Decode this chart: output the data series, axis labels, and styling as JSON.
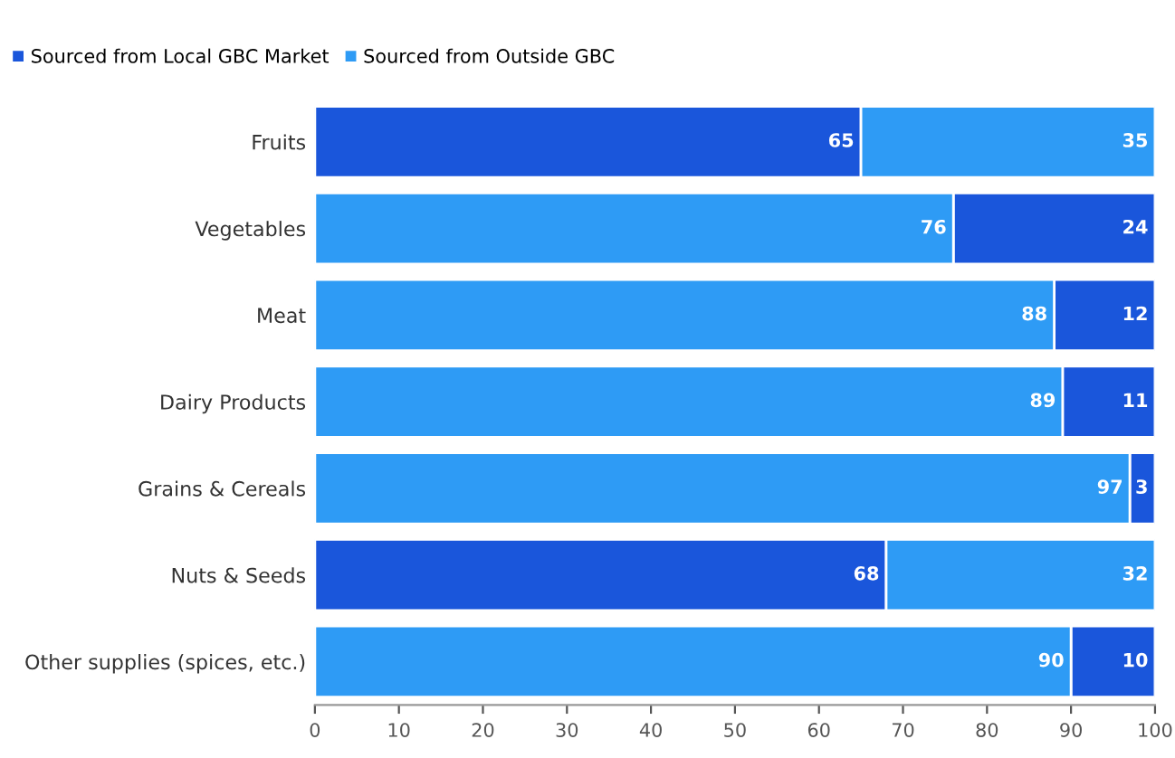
{
  "chart_data": {
    "type": "bar",
    "orientation": "horizontal",
    "categories": [
      "Fruits",
      "Vegetables",
      "Meat",
      "Dairy Products",
      "Grains & Cereals",
      "Nuts & Seeds",
      "Other supplies (spices, etc.)"
    ],
    "series": [
      {
        "name": "Sourced from Local GBC Market",
        "color": "#1a56db",
        "values": [
          65,
          24,
          12,
          11,
          3,
          68,
          10
        ],
        "base": [
          0,
          76,
          88,
          89,
          97,
          0,
          90
        ]
      },
      {
        "name": "Sourced from Outside GBC",
        "color": "#2e9bf5",
        "values": [
          35,
          76,
          88,
          89,
          97,
          32,
          90
        ],
        "base": [
          65,
          0,
          0,
          0,
          0,
          68,
          0
        ]
      }
    ],
    "xlim": [
      0,
      100
    ],
    "xticks": [
      0,
      10,
      20,
      30,
      40,
      50,
      60,
      70,
      80,
      90,
      100
    ],
    "data_labels": true,
    "legend": "top left",
    "grid": false
  }
}
